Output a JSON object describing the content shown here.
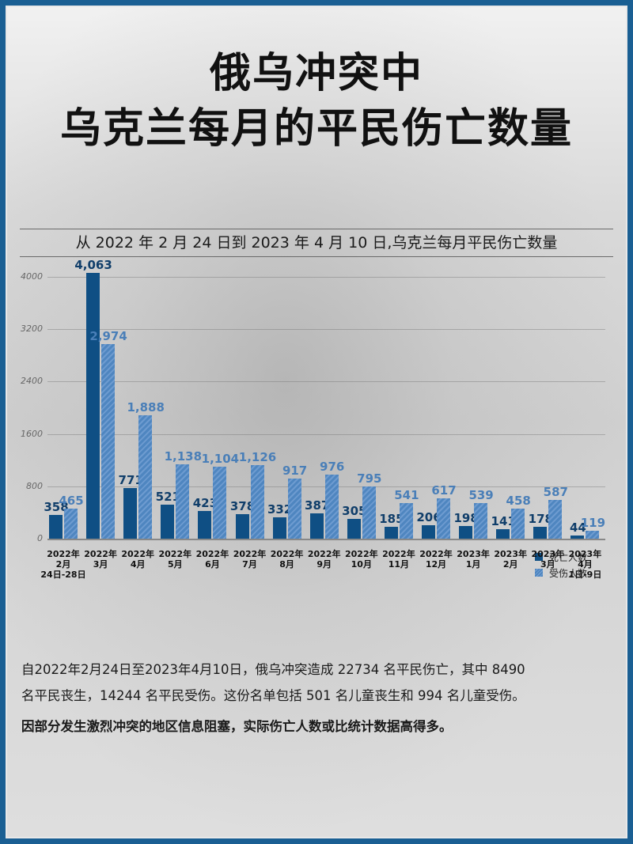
{
  "title": {
    "line1": "俄乌冲突中",
    "line2": "乌克兰每月的平民伤亡数量"
  },
  "subtitle": "从 2022 年 2 月 24 日到 2023 年 4 月 10 日,乌克兰每月平民伤亡数量",
  "legend": {
    "death_label": "死亡人数",
    "injury_label": "受伤人数"
  },
  "colors": {
    "frame": "#1a5f93",
    "death": "#0f4f84",
    "injury": "#4f86c0"
  },
  "chart_data": {
    "type": "bar",
    "title": "从 2022 年 2 月 24 日到 2023 年 4 月 10 日,乌克兰每月平民伤亡数量",
    "xlabel": "",
    "ylabel": "",
    "ylim": [
      0,
      4400
    ],
    "yticks": [
      0,
      800,
      1600,
      2400,
      3200,
      4000
    ],
    "grid": true,
    "legend_position": "upper right",
    "categories": [
      "2022年 2月 24日-28日",
      "2022年 3月",
      "2022年 4月",
      "2022年 5月",
      "2022年 6月",
      "2022年 7月",
      "2022年 8月",
      "2022年 9月",
      "2022年 10月",
      "2022年 11月",
      "2022年 12月",
      "2023年 1月",
      "2023年 2月",
      "2023年 3月",
      "2023年 4月 1日-9日"
    ],
    "series": [
      {
        "name": "死亡人数",
        "values": [
          358,
          4063,
          771,
          521,
          423,
          378,
          332,
          387,
          305,
          185,
          206,
          198,
          141,
          178,
          44
        ],
        "labels": [
          "358",
          "4,063",
          "771",
          "521",
          "423",
          "378",
          "332",
          "387",
          "305",
          "185",
          "206",
          "198",
          "141",
          "178",
          "44"
        ]
      },
      {
        "name": "受伤人数",
        "values": [
          465,
          2974,
          1888,
          1138,
          1104,
          1126,
          917,
          976,
          795,
          541,
          617,
          539,
          458,
          587,
          119
        ],
        "labels": [
          "465",
          "2,974",
          "1,888",
          "1,138",
          "1,104",
          "1,126",
          "917",
          "976",
          "795",
          "541",
          "617",
          "539",
          "458",
          "587",
          "119"
        ]
      }
    ],
    "x_label_lines": [
      [
        "2022年",
        "2月",
        "24日-28日"
      ],
      [
        "2022年",
        "3月"
      ],
      [
        "2022年",
        "4月"
      ],
      [
        "2022年",
        "5月"
      ],
      [
        "2022年",
        "6月"
      ],
      [
        "2022年",
        "7月"
      ],
      [
        "2022年",
        "8月"
      ],
      [
        "2022年",
        "9月"
      ],
      [
        "2022年",
        "10月"
      ],
      [
        "2022年",
        "11月"
      ],
      [
        "2022年",
        "12月"
      ],
      [
        "2023年",
        "1月"
      ],
      [
        "2023年",
        "2月"
      ],
      [
        "2023年",
        "3月"
      ],
      [
        "2023年",
        "4月",
        "1日-9日"
      ]
    ]
  },
  "summary": {
    "line1": "自2022年2月24日至2023年4月10日，俄乌冲突造成 22734 名平民伤亡，其中 8490",
    "line2": "名平民丧生，14244 名平民受伤。这份名单包括 501 名儿童丧生和 994 名儿童受伤。",
    "note": "因部分发生激烈冲突的地区信息阻塞，实际伤亡人数或比统计数据高得多。"
  }
}
